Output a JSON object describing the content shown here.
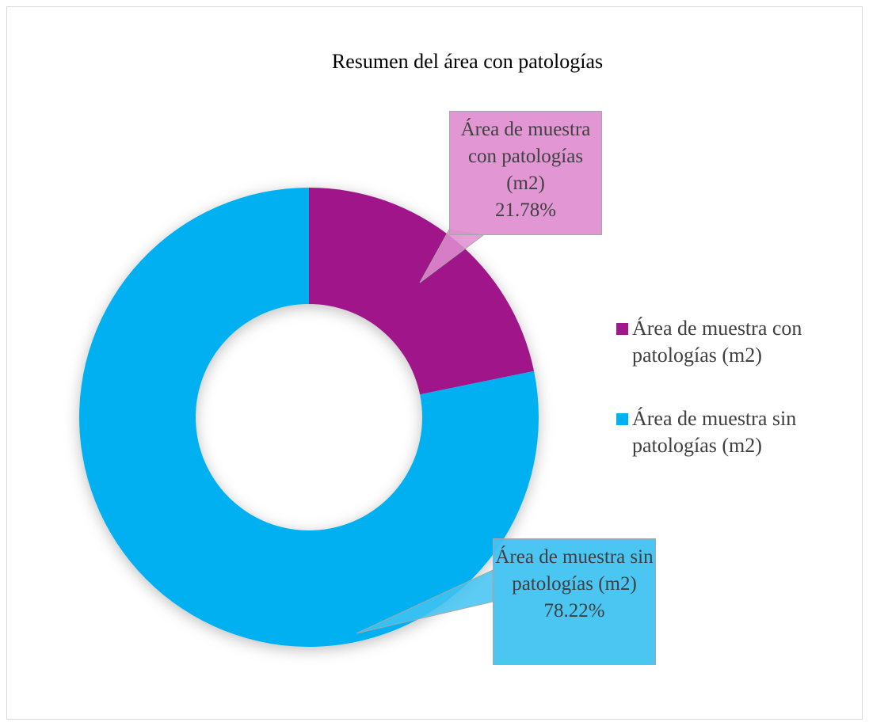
{
  "chart_data": {
    "type": "donut",
    "title": "Resumen del área con patologías",
    "categories": [
      "Área de muestra con patologías (m2)",
      "Área de muestra sin patologías (m2)"
    ],
    "values": [
      21.78,
      78.22
    ],
    "value_labels": [
      "21.78%",
      "78.22%"
    ],
    "colors": [
      "#a0198a",
      "#00b0f0"
    ],
    "legend": "right"
  }
}
